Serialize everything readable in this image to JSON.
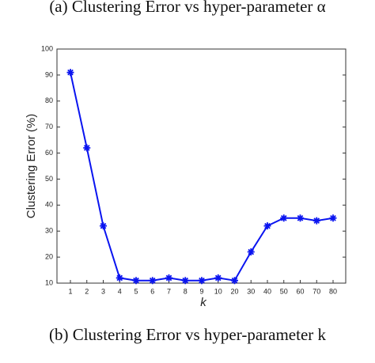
{
  "chart_data": {
    "type": "line",
    "caption_above": "(a) Clustering Error vs hyper-parameter α",
    "title": "(b) Clustering Error vs hyper-parameter k",
    "xlabel": "k",
    "ylabel": "Clustering Error (%)",
    "categories": [
      "1",
      "2",
      "3",
      "4",
      "5",
      "6",
      "7",
      "8",
      "9",
      "10",
      "20",
      "30",
      "40",
      "50",
      "60",
      "70",
      "80"
    ],
    "values": [
      91,
      62,
      32,
      12,
      11,
      11,
      12,
      11,
      11,
      12,
      11,
      22,
      32,
      35,
      35,
      34,
      35
    ],
    "color": "#0a14f0",
    "ylim": [
      10,
      100
    ],
    "yticks": [
      10,
      20,
      30,
      40,
      50,
      60,
      70,
      80,
      90,
      100
    ]
  }
}
